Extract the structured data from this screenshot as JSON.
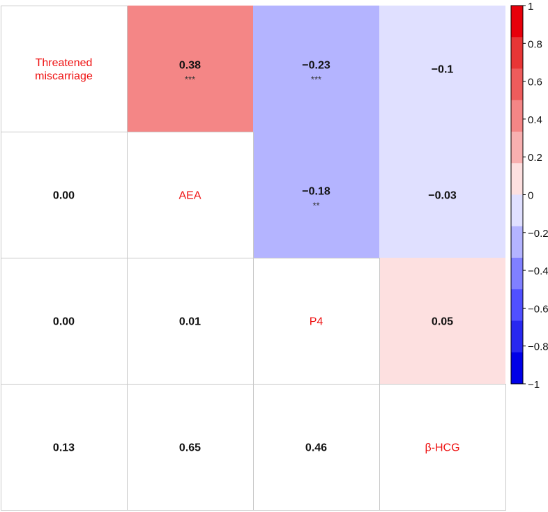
{
  "chart_data": {
    "type": "heatmap",
    "variables": [
      "Threatened\nmiscarriage",
      "AEA",
      "P4",
      "β-HCG"
    ],
    "upper": [
      {
        "row": 0,
        "col": 1,
        "r": 0.38,
        "label": "0.38",
        "stars": "***"
      },
      {
        "row": 0,
        "col": 2,
        "r": -0.23,
        "label": "−0.23",
        "stars": "***"
      },
      {
        "row": 0,
        "col": 3,
        "r": -0.1,
        "label": "−0.1",
        "stars": ""
      },
      {
        "row": 1,
        "col": 2,
        "r": -0.18,
        "label": "−0.18",
        "stars": "**"
      },
      {
        "row": 1,
        "col": 3,
        "r": -0.03,
        "label": "−0.03",
        "stars": ""
      },
      {
        "row": 2,
        "col": 3,
        "r": 0.05,
        "label": "0.05",
        "stars": ""
      }
    ],
    "lower": [
      {
        "row": 1,
        "col": 0,
        "p": "0.00"
      },
      {
        "row": 2,
        "col": 0,
        "p": "0.00"
      },
      {
        "row": 2,
        "col": 1,
        "p": "0.01"
      },
      {
        "row": 3,
        "col": 0,
        "p": "0.13"
      },
      {
        "row": 3,
        "col": 1,
        "p": "0.65"
      },
      {
        "row": 3,
        "col": 2,
        "p": "0.46"
      }
    ],
    "colorbar": {
      "range": [
        -1,
        1
      ],
      "ticks": [
        "1",
        "0.8",
        "0.6",
        "0.4",
        "0.2",
        "0",
        "−0.2",
        "−0.4",
        "−0.6",
        "−0.8",
        "−1"
      ],
      "colors_top_to_bottom": [
        "#e8000b",
        "#e83636",
        "#ee5c5c",
        "#f48686",
        "#f8b0b0",
        "#fde0e0",
        "#e0e0ff",
        "#b4b4ff",
        "#8080ff",
        "#5050ff",
        "#2828f0",
        "#0000e8"
      ]
    },
    "colors": {
      "diag_text": "#ee1111",
      "value_text": "#111111",
      "grid": "#c8c8c8"
    }
  }
}
